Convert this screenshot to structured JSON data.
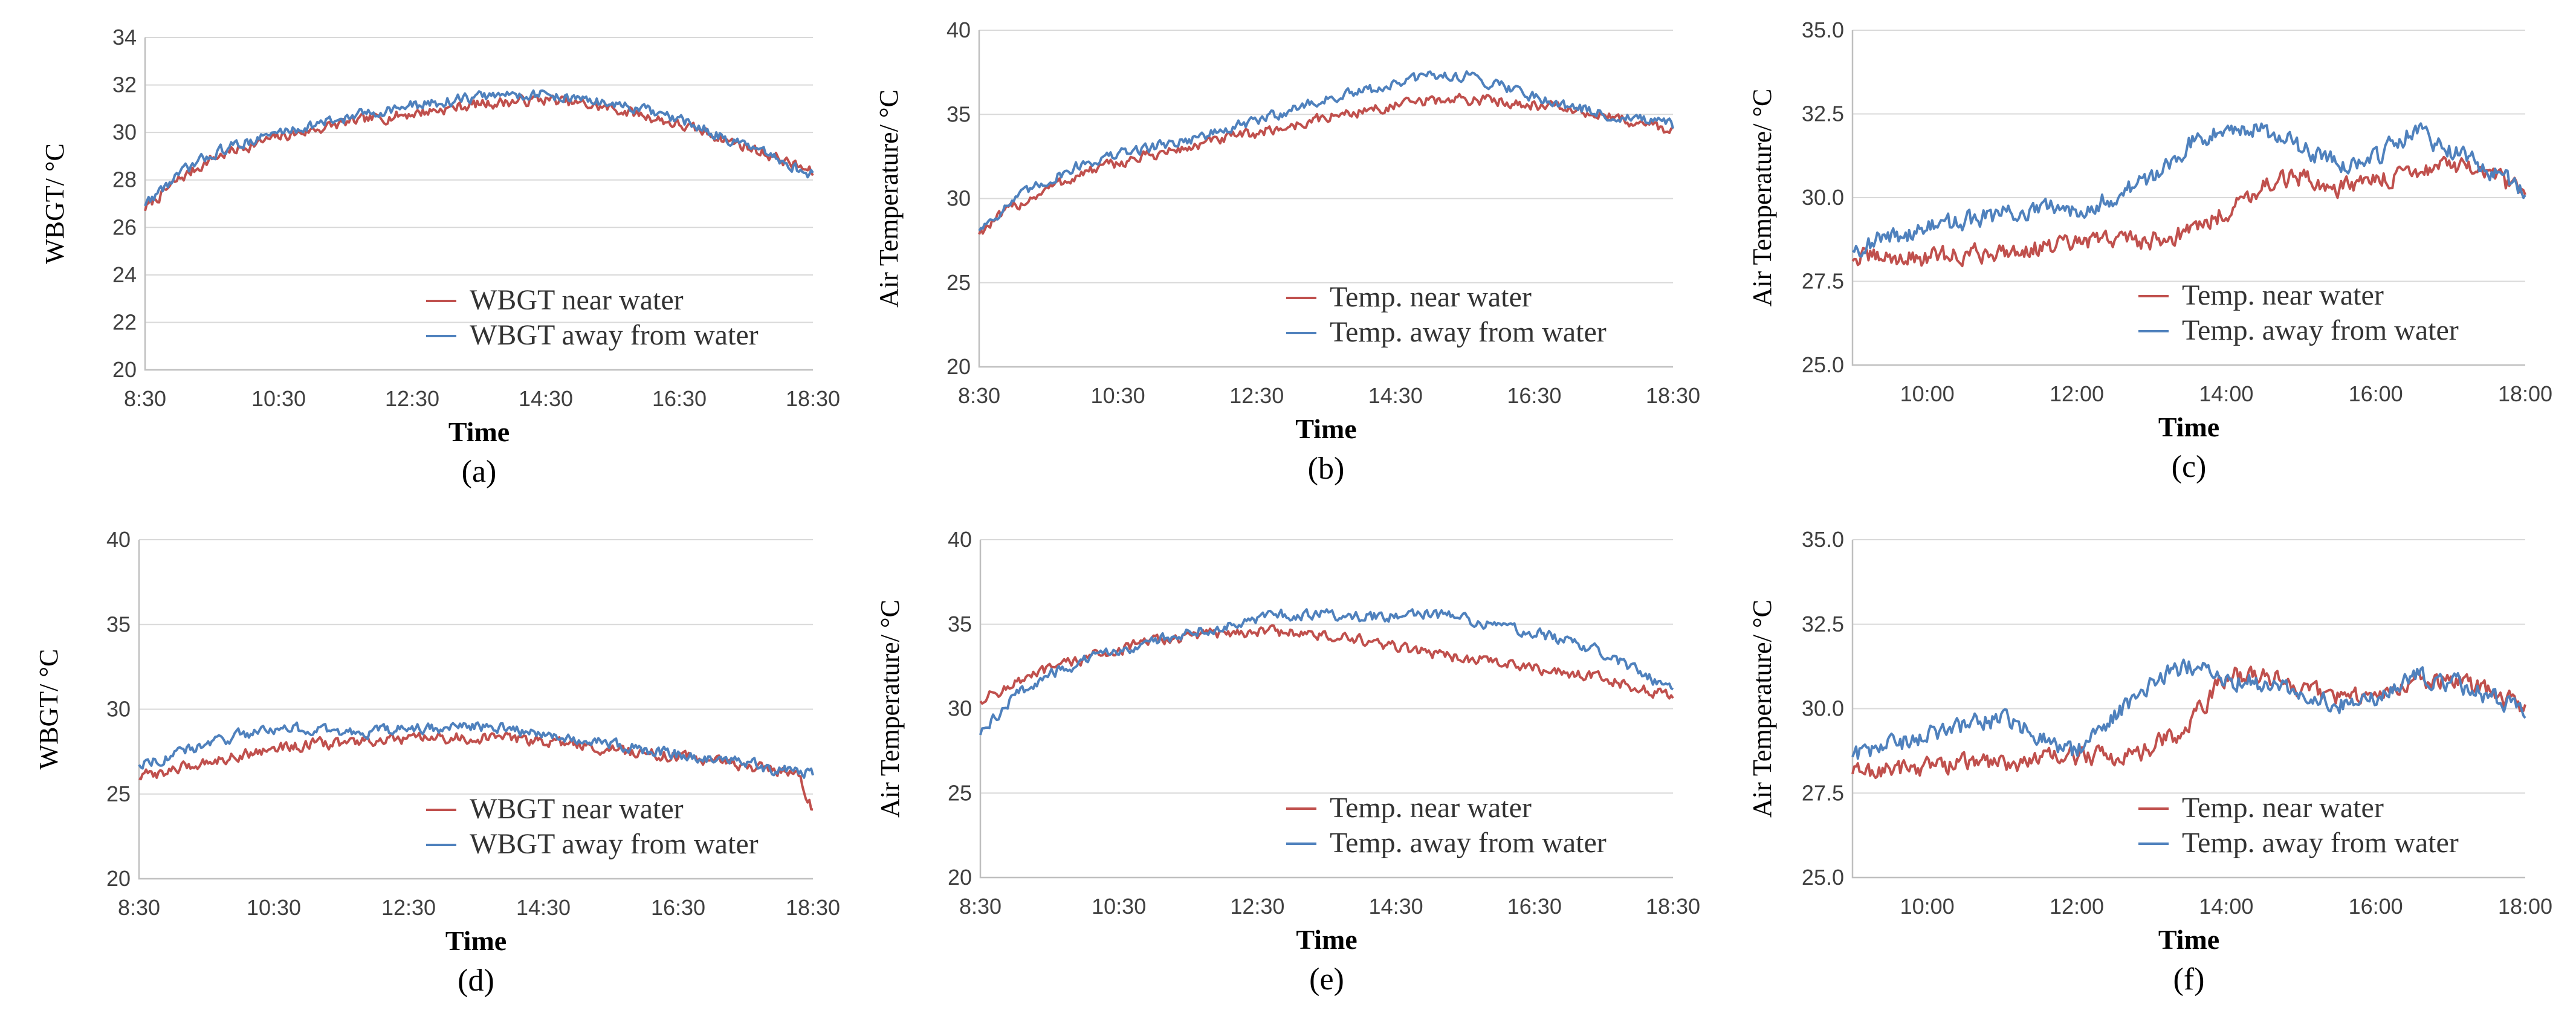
{
  "figure": {
    "colors": {
      "near": "#c0504d",
      "away": "#4f81bd",
      "grid": "#d9d9d9",
      "axis": "#bfbfbf"
    }
  },
  "chart_data": [
    {
      "id": "a",
      "type": "line",
      "panel_label": "(a)",
      "title": "",
      "xlabel": "Time",
      "ylabel": "WBGT/ °C",
      "xlim": [
        8.5,
        18.5
      ],
      "ylim": [
        20,
        34
      ],
      "xticks": [
        8.5,
        10.5,
        12.5,
        14.5,
        16.5,
        18.5
      ],
      "xtick_labels": [
        "8:30",
        "10:30",
        "12:30",
        "14:30",
        "16:30",
        "18:30"
      ],
      "yticks": [
        20,
        22,
        24,
        26,
        28,
        30,
        32,
        34
      ],
      "ytick_labels": [
        "20",
        "22",
        "24",
        "26",
        "28",
        "30",
        "32",
        "34"
      ],
      "legend_position": "bottom-right",
      "series": [
        {
          "name": "WBGT near water",
          "color": "#c0504d",
          "x": [
            8.5,
            9.0,
            9.5,
            10.0,
            10.5,
            11.0,
            11.5,
            12.0,
            12.5,
            13.0,
            13.5,
            14.0,
            14.5,
            15.0,
            15.5,
            16.0,
            16.5,
            17.0,
            17.5,
            18.0,
            18.5
          ],
          "y": [
            26.8,
            28.0,
            28.9,
            29.4,
            29.8,
            30.1,
            30.4,
            30.6,
            30.8,
            31.0,
            31.2,
            31.3,
            31.4,
            31.2,
            31.0,
            30.7,
            30.3,
            29.9,
            29.4,
            28.9,
            28.3
          ]
        },
        {
          "name": "WBGT away from water",
          "color": "#4f81bd",
          "x": [
            8.5,
            9.0,
            9.5,
            10.0,
            10.5,
            11.0,
            11.5,
            12.0,
            12.5,
            13.0,
            13.5,
            14.0,
            14.5,
            15.0,
            15.5,
            16.0,
            16.5,
            17.0,
            17.5,
            18.0,
            18.5
          ],
          "y": [
            27.0,
            28.2,
            29.1,
            29.6,
            30.0,
            30.3,
            30.6,
            30.9,
            31.1,
            31.3,
            31.5,
            31.6,
            31.6,
            31.4,
            31.2,
            30.9,
            30.5,
            30.0,
            29.4,
            28.8,
            28.2
          ]
        }
      ]
    },
    {
      "id": "b",
      "type": "line",
      "panel_label": "(b)",
      "title": "",
      "xlabel": "Time",
      "ylabel": "Air Temperature/ °C",
      "xlim": [
        8.5,
        18.5
      ],
      "ylim": [
        20,
        40
      ],
      "xticks": [
        8.5,
        10.5,
        12.5,
        14.5,
        16.5,
        18.5
      ],
      "xtick_labels": [
        "8:30",
        "10:30",
        "12:30",
        "14:30",
        "16:30",
        "18:30"
      ],
      "yticks": [
        20,
        25,
        30,
        35,
        40
      ],
      "ytick_labels": [
        "20",
        "25",
        "30",
        "35",
        "40"
      ],
      "legend_position": "bottom-right",
      "series": [
        {
          "name": "Temp. near water",
          "color": "#c0504d",
          "x": [
            8.5,
            9.0,
            9.5,
            10.0,
            10.5,
            11.0,
            11.5,
            12.0,
            12.5,
            13.0,
            13.5,
            14.0,
            14.5,
            15.0,
            15.5,
            16.0,
            16.5,
            17.0,
            17.5,
            18.0,
            18.5
          ],
          "y": [
            28.0,
            29.5,
            30.6,
            31.5,
            32.1,
            32.6,
            33.0,
            33.5,
            33.9,
            34.3,
            34.8,
            35.2,
            35.5,
            35.8,
            35.9,
            35.8,
            35.6,
            35.3,
            34.9,
            34.5,
            34.0
          ]
        },
        {
          "name": "Temp. away from water",
          "color": "#4f81bd",
          "x": [
            8.5,
            9.0,
            9.5,
            10.0,
            10.5,
            11.0,
            11.5,
            12.0,
            12.5,
            13.0,
            13.5,
            14.0,
            14.5,
            15.0,
            15.5,
            16.0,
            16.5,
            17.0,
            17.5,
            18.0,
            18.5
          ],
          "y": [
            28.2,
            29.9,
            31.1,
            32.1,
            32.6,
            33.1,
            33.5,
            34.0,
            34.6,
            35.3,
            35.9,
            36.3,
            36.8,
            37.3,
            37.3,
            36.8,
            36.1,
            35.5,
            35.0,
            34.7,
            34.3
          ]
        }
      ]
    },
    {
      "id": "c",
      "type": "line",
      "panel_label": "(c)",
      "title": "",
      "xlabel": "Time",
      "ylabel": "Air Temperature/ °C",
      "xlim": [
        9.0,
        18.0
      ],
      "ylim": [
        25.0,
        35.0
      ],
      "xticks": [
        10,
        12,
        14,
        16,
        18
      ],
      "xtick_labels": [
        "10:00",
        "12:00",
        "14:00",
        "16:00",
        "18:00"
      ],
      "yticks": [
        25.0,
        27.5,
        30.0,
        32.5,
        35.0
      ],
      "ytick_labels": [
        "25.0",
        "27.5",
        "30.0",
        "32.5",
        "35.0"
      ],
      "legend_position": "bottom-right",
      "series": [
        {
          "name": "Temp. near water",
          "color": "#c0504d",
          "x": [
            9.0,
            9.5,
            10.0,
            10.5,
            11.0,
            11.5,
            12.0,
            12.5,
            13.0,
            13.5,
            14.0,
            14.5,
            15.0,
            15.5,
            16.0,
            16.5,
            17.0,
            17.5,
            18.0
          ],
          "y": [
            28.2,
            28.2,
            28.2,
            28.3,
            28.4,
            28.5,
            28.6,
            28.8,
            28.7,
            29.0,
            29.6,
            30.4,
            30.6,
            30.3,
            30.5,
            30.8,
            31.0,
            30.6,
            30.2
          ]
        },
        {
          "name": "Temp. away from water",
          "color": "#4f81bd",
          "x": [
            9.0,
            9.5,
            10.0,
            10.5,
            11.0,
            11.5,
            12.0,
            12.5,
            13.0,
            13.5,
            14.0,
            14.5,
            15.0,
            15.5,
            16.0,
            16.5,
            17.0,
            17.5,
            18.0
          ],
          "y": [
            28.5,
            28.8,
            29.1,
            29.3,
            29.5,
            29.6,
            29.7,
            30.0,
            30.6,
            31.6,
            32.2,
            32.0,
            31.5,
            31.0,
            31.2,
            32.0,
            31.4,
            30.9,
            30.1
          ]
        }
      ]
    },
    {
      "id": "d",
      "type": "line",
      "panel_label": "(d)",
      "title": "",
      "xlabel": "Time",
      "ylabel": "WBGT/ °C",
      "xlim": [
        8.5,
        18.5
      ],
      "ylim": [
        20,
        40
      ],
      "xticks": [
        8.5,
        10.5,
        12.5,
        14.5,
        16.5,
        18.5
      ],
      "xtick_labels": [
        "8:30",
        "10:30",
        "12:30",
        "14:30",
        "16:30",
        "18:30"
      ],
      "yticks": [
        20,
        25,
        30,
        35,
        40
      ],
      "ytick_labels": [
        "20",
        "25",
        "30",
        "35",
        "40"
      ],
      "legend_position": "bottom-right",
      "series": [
        {
          "name": "WBGT near water",
          "color": "#c0504d",
          "x": [
            8.5,
            9.0,
            9.5,
            10.0,
            10.5,
            11.0,
            11.5,
            12.0,
            12.5,
            13.0,
            13.5,
            14.0,
            14.5,
            15.0,
            15.5,
            16.0,
            16.5,
            17.0,
            17.5,
            18.0,
            18.3,
            18.5
          ],
          "y": [
            26.0,
            26.4,
            26.9,
            27.3,
            27.7,
            27.9,
            28.0,
            28.1,
            28.2,
            28.3,
            28.3,
            28.3,
            28.1,
            27.9,
            27.6,
            27.4,
            27.2,
            27.0,
            26.7,
            26.4,
            26.0,
            24.0
          ]
        },
        {
          "name": "WBGT away from water",
          "color": "#4f81bd",
          "x": [
            8.5,
            9.0,
            9.5,
            10.0,
            10.5,
            11.0,
            11.5,
            12.0,
            12.5,
            13.0,
            13.5,
            14.0,
            14.5,
            15.0,
            15.5,
            16.0,
            16.5,
            17.0,
            17.5,
            18.0,
            18.5
          ],
          "y": [
            26.8,
            27.3,
            27.9,
            28.5,
            28.9,
            28.8,
            28.6,
            28.7,
            28.8,
            28.9,
            29.0,
            28.8,
            28.6,
            28.3,
            28.0,
            27.6,
            27.3,
            27.0,
            26.8,
            26.4,
            26.2
          ]
        }
      ]
    },
    {
      "id": "e",
      "type": "line",
      "panel_label": "(e)",
      "title": "",
      "xlabel": "Time",
      "ylabel": "Air Temperature/ °C",
      "xlim": [
        8.5,
        18.5
      ],
      "ylim": [
        20,
        40
      ],
      "xticks": [
        8.5,
        10.5,
        12.5,
        14.5,
        16.5,
        18.5
      ],
      "xtick_labels": [
        "8:30",
        "10:30",
        "12:30",
        "14:30",
        "16:30",
        "18:30"
      ],
      "yticks": [
        20,
        25,
        30,
        35,
        40
      ],
      "ytick_labels": [
        "20",
        "25",
        "30",
        "35",
        "40"
      ],
      "legend_position": "bottom-right",
      "series": [
        {
          "name": "Temp. near water",
          "color": "#c0504d",
          "x": [
            8.5,
            9.0,
            9.5,
            10.0,
            10.5,
            11.0,
            11.5,
            12.0,
            12.5,
            13.0,
            13.5,
            14.0,
            14.5,
            15.0,
            15.5,
            16.0,
            16.5,
            17.0,
            17.5,
            18.0,
            18.5
          ],
          "y": [
            30.5,
            31.5,
            32.3,
            33.0,
            33.5,
            34.0,
            34.3,
            34.5,
            34.6,
            34.5,
            34.3,
            34.0,
            33.6,
            33.3,
            33.0,
            32.7,
            32.4,
            32.1,
            31.8,
            31.2,
            30.7
          ]
        },
        {
          "name": "Temp. away from water",
          "color": "#4f81bd",
          "x": [
            8.5,
            9.0,
            9.5,
            10.0,
            10.5,
            11.0,
            11.5,
            12.0,
            12.5,
            13.0,
            13.5,
            14.0,
            14.5,
            15.0,
            15.5,
            16.0,
            16.5,
            17.0,
            17.5,
            18.0,
            18.5
          ],
          "y": [
            28.5,
            30.8,
            32.0,
            32.8,
            33.5,
            34.0,
            34.5,
            34.9,
            35.3,
            35.6,
            35.6,
            35.4,
            35.5,
            35.6,
            35.3,
            34.9,
            34.5,
            34.0,
            33.3,
            32.2,
            31.0
          ]
        }
      ]
    },
    {
      "id": "f",
      "type": "line",
      "panel_label": "(f)",
      "title": "",
      "xlabel": "Time",
      "ylabel": "Air Temperature/ °C",
      "xlim": [
        9.0,
        18.0
      ],
      "ylim": [
        25.0,
        35.0
      ],
      "xticks": [
        10,
        12,
        14,
        16,
        18
      ],
      "xtick_labels": [
        "10:00",
        "12:00",
        "14:00",
        "16:00",
        "18:00"
      ],
      "yticks": [
        25.0,
        27.5,
        30.0,
        32.5,
        35.0
      ],
      "ytick_labels": [
        "25.0",
        "27.5",
        "30.0",
        "32.5",
        "35.0"
      ],
      "legend_position": "bottom-right",
      "series": [
        {
          "name": "Temp. near water",
          "color": "#c0504d",
          "x": [
            9.0,
            9.5,
            10.0,
            10.5,
            11.0,
            11.5,
            12.0,
            12.5,
            13.0,
            13.5,
            14.0,
            14.5,
            15.0,
            15.5,
            16.0,
            16.5,
            17.0,
            17.5,
            18.0
          ],
          "y": [
            28.1,
            28.2,
            28.3,
            28.4,
            28.4,
            28.5,
            28.6,
            28.6,
            28.8,
            29.5,
            31.0,
            31.0,
            30.6,
            30.3,
            30.5,
            30.8,
            30.9,
            30.5,
            30.0
          ]
        },
        {
          "name": "Temp. away from water",
          "color": "#4f81bd",
          "x": [
            9.0,
            9.5,
            10.0,
            10.5,
            11.0,
            11.5,
            12.0,
            12.5,
            13.0,
            13.5,
            14.0,
            14.5,
            15.0,
            15.5,
            16.0,
            16.5,
            17.0,
            17.5,
            18.0
          ],
          "y": [
            28.6,
            28.9,
            29.2,
            29.5,
            29.7,
            29.2,
            28.7,
            29.8,
            30.8,
            31.3,
            30.9,
            30.7,
            30.4,
            30.1,
            30.3,
            31.0,
            30.8,
            30.4,
            30.0
          ]
        }
      ]
    }
  ]
}
